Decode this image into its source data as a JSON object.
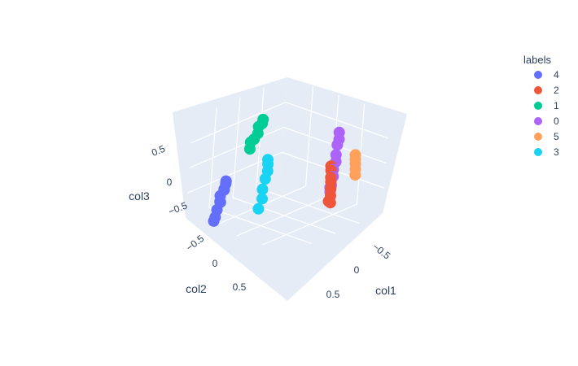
{
  "chart_data": {
    "type": "scatter3d",
    "axes": {
      "x": {
        "title": "col1",
        "ticks": [
          "−0.5",
          "0",
          "0.5"
        ],
        "tick_values": [
          -0.5,
          0,
          0.5
        ]
      },
      "y": {
        "title": "col2",
        "ticks": [
          "−0.5",
          "0",
          "0.5"
        ],
        "tick_values": [
          -0.5,
          0,
          0.5
        ]
      },
      "z": {
        "title": "col3",
        "ticks": [
          "−0.5",
          "0",
          "0.5"
        ],
        "tick_values": [
          -0.5,
          0,
          0.5
        ]
      }
    },
    "legend": {
      "title": "labels",
      "placement": "top-right"
    },
    "series": [
      {
        "name": "4",
        "color": "#636efa",
        "points": [
          [
            -0.7,
            0.52,
            -0.35
          ],
          [
            -0.72,
            0.5,
            -0.42
          ],
          [
            -0.7,
            0.55,
            -0.5
          ],
          [
            -0.74,
            0.5,
            -0.55
          ],
          [
            -0.72,
            0.6,
            -0.62
          ],
          [
            -0.7,
            0.62,
            -0.72
          ],
          [
            -0.75,
            0.55,
            -0.78
          ],
          [
            -0.72,
            0.65,
            -0.88
          ],
          [
            -0.7,
            0.7,
            -1.0
          ],
          [
            -0.74,
            0.68,
            -1.1
          ]
        ]
      },
      {
        "name": "2",
        "color": "#ef553b",
        "points": [
          [
            0.3,
            -0.6,
            -0.15
          ],
          [
            0.35,
            -0.55,
            -0.2
          ],
          [
            0.4,
            -0.5,
            -0.3
          ],
          [
            0.45,
            -0.45,
            -0.35
          ],
          [
            0.5,
            -0.4,
            -0.45
          ],
          [
            0.55,
            -0.35,
            -0.55
          ],
          [
            0.6,
            -0.3,
            -0.65
          ],
          [
            0.58,
            -0.28,
            -0.62
          ]
        ]
      },
      {
        "name": "1",
        "color": "#00cc96",
        "points": [
          [
            -0.75,
            -0.25,
            0.55
          ],
          [
            -0.72,
            -0.2,
            0.5
          ],
          [
            -0.74,
            -0.15,
            0.45
          ],
          [
            -0.7,
            -0.1,
            0.35
          ],
          [
            -0.72,
            -0.05,
            0.25
          ],
          [
            -0.74,
            0.0,
            0.2
          ],
          [
            -0.7,
            0.05,
            0.1
          ]
        ]
      },
      {
        "name": "0",
        "color": "#ab63fa",
        "points": [
          [
            0.15,
            -0.9,
            0.35
          ],
          [
            0.2,
            -0.85,
            0.25
          ],
          [
            0.2,
            -0.82,
            0.15
          ],
          [
            0.25,
            -0.75,
            0.0
          ],
          [
            0.3,
            -0.7,
            -0.1
          ],
          [
            0.35,
            -0.6,
            -0.2
          ],
          [
            0.4,
            -0.55,
            -0.3
          ],
          [
            0.42,
            -0.5,
            -0.45
          ],
          [
            0.45,
            -0.45,
            -0.55
          ],
          [
            0.4,
            -0.5,
            -0.5
          ]
        ]
      },
      {
        "name": "5",
        "color": "#ffa15a",
        "points": [
          [
            0.4,
            -1.0,
            -0.05
          ],
          [
            0.45,
            -0.95,
            -0.1
          ],
          [
            0.5,
            -0.9,
            -0.15
          ],
          [
            0.55,
            -0.85,
            -0.22
          ],
          [
            0.6,
            -0.8,
            -0.3
          ]
        ]
      },
      {
        "name": "3",
        "color": "#19d3f3",
        "points": [
          [
            -0.3,
            0.1,
            0.05
          ],
          [
            -0.25,
            0.15,
            0.0
          ],
          [
            -0.2,
            0.2,
            -0.1
          ],
          [
            -0.15,
            0.3,
            -0.2
          ],
          [
            -0.1,
            0.4,
            -0.35
          ],
          [
            -0.05,
            0.45,
            -0.5
          ],
          [
            -0.02,
            0.55,
            -0.65
          ]
        ]
      }
    ]
  }
}
